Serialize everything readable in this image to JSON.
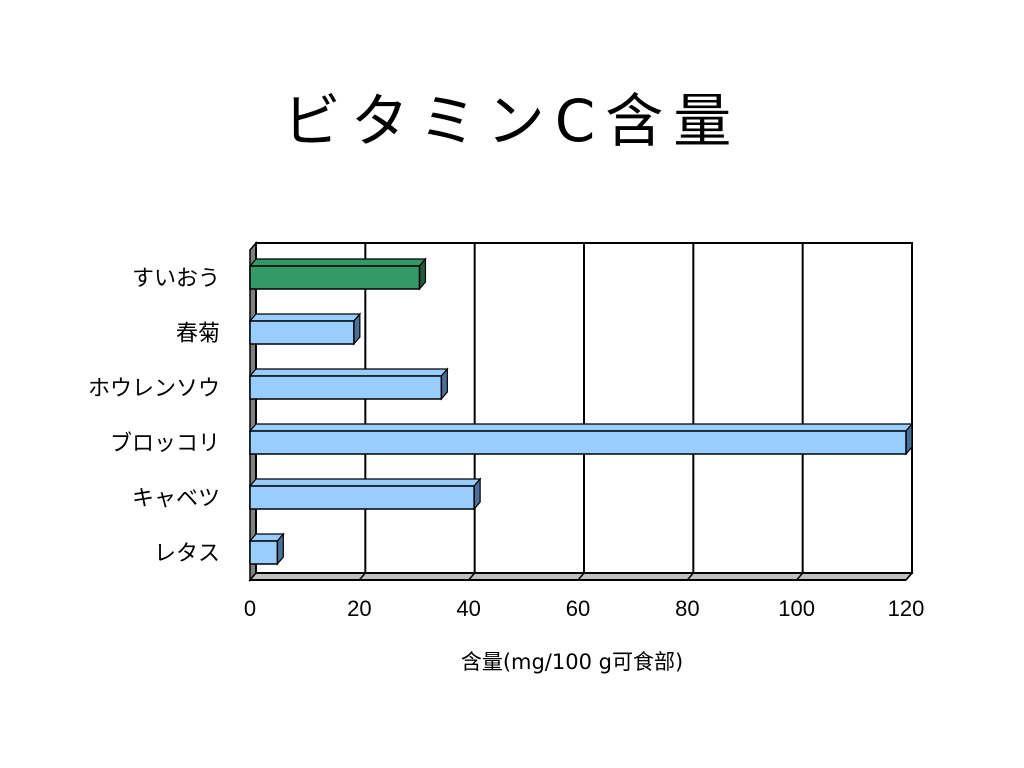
{
  "slide": {
    "title": "ビタミンC含量"
  },
  "chart_data": {
    "type": "bar",
    "orientation": "horizontal",
    "title": "",
    "categories": [
      "すいおう",
      "春菊",
      "ホウレンソウ",
      "ブロッコリ",
      "キャベツ",
      "レタス"
    ],
    "values": [
      31,
      19,
      35,
      120,
      41,
      5
    ],
    "xlabel": "含量(mg/100 g可食部)",
    "ylabel": "",
    "xlim": [
      0,
      120
    ],
    "xticks": [
      0,
      20,
      40,
      60,
      80,
      100,
      120
    ],
    "grid": true,
    "legend": "none",
    "colors": {
      "default_bar": "#99ccff",
      "highlight_bar": "#339966",
      "highlight_category": "すいおう",
      "bar_shade": "#4a6f99",
      "highlight_shade": "#1f5c3d",
      "grid": "#000000",
      "wall": "#808080"
    }
  }
}
